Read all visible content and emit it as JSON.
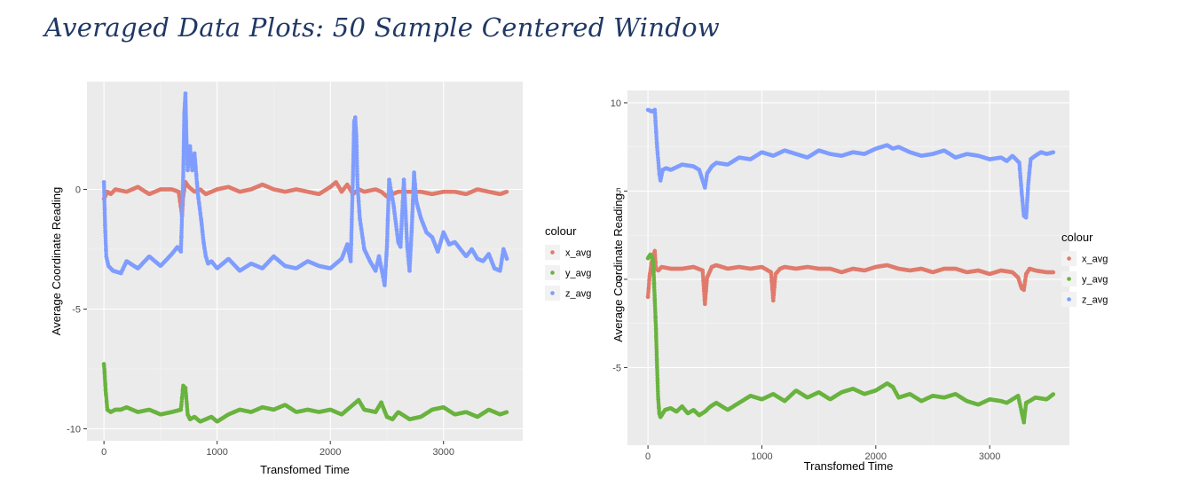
{
  "title": "Averaged Data Plots: 50 Sample Centered Window",
  "colors": {
    "x_avg": "#e07b6c",
    "y_avg": "#69b33f",
    "z_avg": "#7f9dff",
    "panel": "#ebebeb",
    "grid": "#ffffff"
  },
  "chart_data": [
    {
      "type": "scatter",
      "xlabel": "Transfomed Time",
      "ylabel": "Average Coordinate Reading",
      "xlim": [
        -150,
        3700
      ],
      "ylim": [
        -10.5,
        4.5
      ],
      "x_ticks": [
        0,
        1000,
        2000,
        3000
      ],
      "x_tick_labels": [
        "0",
        "1000",
        "2000",
        "3000"
      ],
      "y_ticks": [
        -10,
        -5,
        0
      ],
      "y_tick_labels": [
        "-10",
        "-5",
        "0"
      ],
      "grid": true,
      "legend": {
        "title": "colour",
        "placement": "right",
        "entries": [
          "x_avg",
          "y_avg",
          "z_avg"
        ]
      },
      "series": [
        {
          "name": "x_avg",
          "color": "#e07b6c",
          "x": [
            0,
            30,
            60,
            100,
            200,
            300,
            400,
            500,
            600,
            660,
            690,
            700,
            720,
            750,
            800,
            850,
            900,
            1000,
            1100,
            1200,
            1300,
            1400,
            1500,
            1600,
            1700,
            1800,
            1900,
            2000,
            2050,
            2100,
            2150,
            2200,
            2250,
            2300,
            2400,
            2450,
            2500,
            2600,
            2700,
            2800,
            2900,
            3000,
            3100,
            3200,
            3300,
            3400,
            3500,
            3560
          ],
          "y": [
            -0.4,
            -0.1,
            -0.2,
            0.0,
            -0.1,
            0.1,
            -0.2,
            0.0,
            0.0,
            -0.1,
            -1.1,
            -0.3,
            0.3,
            0.1,
            -0.1,
            0.0,
            -0.2,
            0.0,
            0.1,
            -0.1,
            0.0,
            0.2,
            0.0,
            -0.1,
            0.0,
            -0.1,
            -0.2,
            0.1,
            0.3,
            -0.1,
            0.2,
            -0.2,
            0.0,
            -0.1,
            0.0,
            -0.1,
            -0.3,
            -0.1,
            -0.1,
            -0.1,
            -0.2,
            -0.1,
            -0.1,
            -0.2,
            0.0,
            -0.1,
            -0.2,
            -0.1
          ]
        },
        {
          "name": "y_avg",
          "color": "#69b33f",
          "x": [
            0,
            5,
            15,
            30,
            60,
            100,
            150,
            200,
            300,
            400,
            500,
            600,
            680,
            700,
            720,
            740,
            760,
            800,
            850,
            900,
            950,
            1000,
            1100,
            1200,
            1300,
            1400,
            1500,
            1600,
            1700,
            1800,
            1900,
            2000,
            2100,
            2200,
            2250,
            2300,
            2400,
            2450,
            2500,
            2550,
            2600,
            2700,
            2800,
            2900,
            3000,
            3100,
            3200,
            3300,
            3400,
            3500,
            3560
          ],
          "y": [
            -7.3,
            -7.6,
            -8.4,
            -9.2,
            -9.3,
            -9.2,
            -9.2,
            -9.1,
            -9.3,
            -9.2,
            -9.4,
            -9.3,
            -9.2,
            -8.2,
            -8.3,
            -9.4,
            -9.6,
            -9.5,
            -9.7,
            -9.6,
            -9.5,
            -9.7,
            -9.4,
            -9.2,
            -9.3,
            -9.1,
            -9.2,
            -9.0,
            -9.3,
            -9.2,
            -9.3,
            -9.2,
            -9.4,
            -9.0,
            -8.8,
            -9.2,
            -9.3,
            -8.9,
            -9.5,
            -9.6,
            -9.3,
            -9.6,
            -9.5,
            -9.2,
            -9.1,
            -9.4,
            -9.3,
            -9.5,
            -9.2,
            -9.4,
            -9.3
          ]
        },
        {
          "name": "z_avg",
          "color": "#7f9dff",
          "x": [
            0,
            10,
            20,
            40,
            80,
            150,
            200,
            300,
            400,
            500,
            600,
            650,
            680,
            700,
            710,
            720,
            730,
            740,
            760,
            780,
            800,
            830,
            860,
            880,
            900,
            920,
            950,
            1000,
            1100,
            1200,
            1300,
            1400,
            1500,
            1600,
            1700,
            1800,
            1900,
            2000,
            2100,
            2150,
            2180,
            2200,
            2210,
            2220,
            2230,
            2240,
            2260,
            2300,
            2350,
            2400,
            2430,
            2460,
            2480,
            2500,
            2520,
            2560,
            2600,
            2620,
            2650,
            2680,
            2700,
            2720,
            2740,
            2760,
            2800,
            2850,
            2900,
            2950,
            3000,
            3050,
            3100,
            3150,
            3200,
            3250,
            3300,
            3350,
            3400,
            3450,
            3500,
            3530,
            3560
          ],
          "y": [
            0.3,
            -1.5,
            -2.8,
            -3.2,
            -3.4,
            -3.5,
            -3.0,
            -3.3,
            -2.8,
            -3.2,
            -2.7,
            -2.4,
            -2.6,
            0.5,
            3.2,
            4.0,
            2.0,
            0.8,
            1.8,
            0.8,
            1.5,
            -0.2,
            -1.3,
            -2.2,
            -2.8,
            -3.1,
            -3.0,
            -3.3,
            -2.9,
            -3.4,
            -3.1,
            -3.3,
            -2.8,
            -3.2,
            -3.3,
            -3.0,
            -3.2,
            -3.3,
            -2.9,
            -2.3,
            -3.0,
            0.5,
            2.8,
            3.0,
            2.2,
            0.2,
            -1.2,
            -2.5,
            -3.0,
            -3.4,
            -2.8,
            -3.5,
            -4.0,
            -2.4,
            0.4,
            -0.7,
            -2.2,
            -2.4,
            0.4,
            -2.4,
            -3.4,
            -1.6,
            0.7,
            -0.5,
            -1.2,
            -1.8,
            -2.0,
            -2.6,
            -1.8,
            -2.3,
            -2.2,
            -2.5,
            -2.8,
            -2.5,
            -2.9,
            -3.0,
            -2.7,
            -3.3,
            -3.4,
            -2.5,
            -2.9
          ]
        }
      ]
    },
    {
      "type": "scatter",
      "xlabel": "Transfomed Time",
      "ylabel": "Average Coordinate Reading",
      "xlim": [
        -180,
        3700
      ],
      "ylim": [
        -9.4,
        10.7
      ],
      "x_ticks": [
        0,
        1000,
        2000,
        3000
      ],
      "x_tick_labels": [
        "0",
        "1000",
        "2000",
        "3000"
      ],
      "y_ticks": [
        -5,
        0,
        5,
        10
      ],
      "y_tick_labels": [
        "-5",
        "0",
        "5",
        "10"
      ],
      "grid": true,
      "legend": {
        "title": "colour",
        "placement": "right",
        "entries": [
          "x_avg",
          "y_avg",
          "z_avg"
        ]
      },
      "series": [
        {
          "name": "x_avg",
          "color": "#e07b6c",
          "x": [
            0,
            15,
            30,
            50,
            60,
            70,
            90,
            120,
            200,
            300,
            400,
            480,
            500,
            520,
            560,
            600,
            700,
            800,
            900,
            1000,
            1080,
            1100,
            1120,
            1160,
            1200,
            1300,
            1400,
            1500,
            1600,
            1700,
            1800,
            1900,
            2000,
            2100,
            2200,
            2300,
            2400,
            2500,
            2600,
            2700,
            2800,
            2900,
            3000,
            3100,
            3200,
            3250,
            3280,
            3300,
            3320,
            3350,
            3400,
            3500,
            3560
          ],
          "y": [
            -1.0,
            0.2,
            0.9,
            1.4,
            1.6,
            0.6,
            0.5,
            0.7,
            0.6,
            0.6,
            0.7,
            0.5,
            -1.4,
            0.1,
            0.7,
            0.8,
            0.6,
            0.7,
            0.6,
            0.7,
            0.4,
            -1.2,
            0.3,
            0.6,
            0.7,
            0.6,
            0.7,
            0.6,
            0.6,
            0.4,
            0.6,
            0.5,
            0.7,
            0.8,
            0.6,
            0.5,
            0.6,
            0.4,
            0.6,
            0.6,
            0.4,
            0.5,
            0.3,
            0.5,
            0.4,
            0.1,
            -0.5,
            -0.6,
            0.3,
            0.6,
            0.5,
            0.4,
            0.4
          ]
        },
        {
          "name": "y_avg",
          "color": "#69b33f",
          "x": [
            0,
            20,
            40,
            50,
            60,
            70,
            80,
            90,
            100,
            110,
            120,
            150,
            200,
            250,
            300,
            350,
            400,
            450,
            500,
            550,
            600,
            700,
            800,
            900,
            1000,
            1100,
            1200,
            1300,
            1400,
            1500,
            1600,
            1700,
            1800,
            1900,
            2000,
            2100,
            2150,
            2200,
            2300,
            2400,
            2500,
            2600,
            2700,
            2800,
            2900,
            3000,
            3100,
            3150,
            3200,
            3250,
            3280,
            3300,
            3320,
            3350,
            3400,
            3500,
            3560
          ],
          "y": [
            1.2,
            1.4,
            1.2,
            0.4,
            -1.2,
            -2.8,
            -5.0,
            -6.8,
            -7.6,
            -7.8,
            -7.7,
            -7.4,
            -7.3,
            -7.5,
            -7.2,
            -7.6,
            -7.4,
            -7.7,
            -7.5,
            -7.2,
            -7.0,
            -7.4,
            -7.0,
            -6.6,
            -6.8,
            -6.5,
            -6.9,
            -6.3,
            -6.7,
            -6.4,
            -6.8,
            -6.4,
            -6.2,
            -6.5,
            -6.3,
            -5.9,
            -6.1,
            -6.7,
            -6.5,
            -6.9,
            -6.6,
            -6.7,
            -6.5,
            -6.9,
            -7.1,
            -6.8,
            -6.9,
            -7.0,
            -6.8,
            -6.6,
            -7.5,
            -8.1,
            -7.0,
            -6.9,
            -6.7,
            -6.8,
            -6.5
          ]
        },
        {
          "name": "z_avg",
          "color": "#7f9dff",
          "x": [
            0,
            40,
            60,
            80,
            100,
            110,
            130,
            160,
            200,
            300,
            400,
            450,
            480,
            500,
            520,
            560,
            600,
            700,
            800,
            900,
            1000,
            1100,
            1200,
            1300,
            1400,
            1500,
            1600,
            1700,
            1800,
            1900,
            2000,
            2050,
            2100,
            2150,
            2200,
            2300,
            2400,
            2500,
            2600,
            2700,
            2800,
            2900,
            3000,
            3100,
            3150,
            3200,
            3230,
            3260,
            3280,
            3300,
            3320,
            3340,
            3360,
            3400,
            3450,
            3500,
            3560
          ],
          "y": [
            9.6,
            9.5,
            9.6,
            7.5,
            6.0,
            5.6,
            6.2,
            6.3,
            6.2,
            6.5,
            6.4,
            6.2,
            5.6,
            5.2,
            6.0,
            6.4,
            6.6,
            6.5,
            6.9,
            6.8,
            7.2,
            7.0,
            7.3,
            7.1,
            6.9,
            7.3,
            7.1,
            7.0,
            7.2,
            7.1,
            7.4,
            7.5,
            7.6,
            7.4,
            7.5,
            7.2,
            7.0,
            7.1,
            7.3,
            6.9,
            7.1,
            7.0,
            6.8,
            6.9,
            6.7,
            7.0,
            6.8,
            6.6,
            5.0,
            3.6,
            3.5,
            5.5,
            6.8,
            7.0,
            7.2,
            7.1,
            7.2
          ]
        }
      ]
    }
  ]
}
